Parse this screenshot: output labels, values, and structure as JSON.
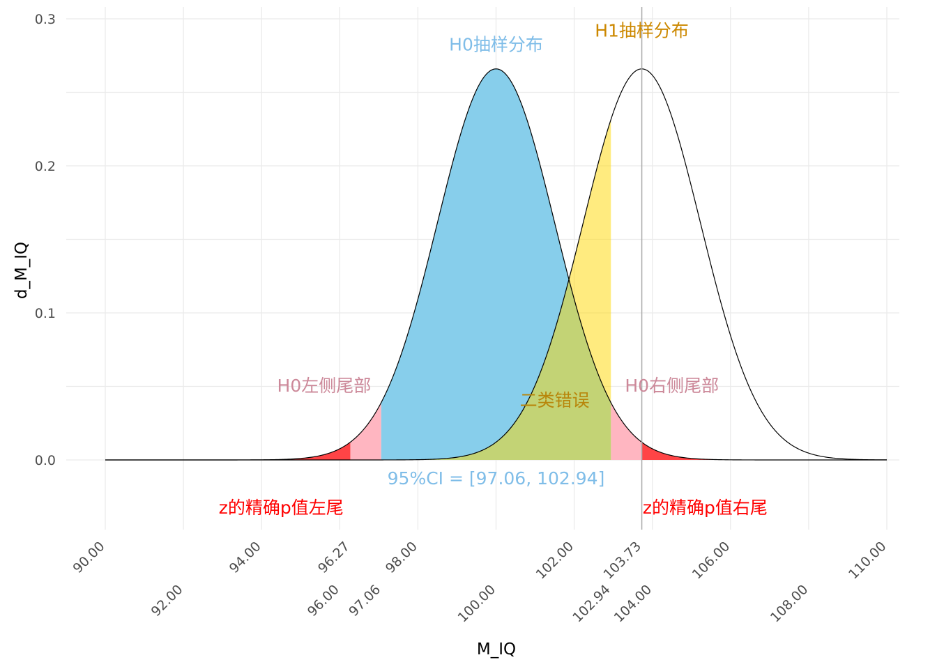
{
  "chart_data": {
    "type": "area",
    "xlabel": "M_IQ",
    "ylabel": "d_M_IQ",
    "xlim": [
      90,
      110
    ],
    "ylim": [
      0,
      0.3
    ],
    "y_ticks": [
      0.0,
      0.1,
      0.2,
      0.3
    ],
    "y_tick_labels": [
      "0.0",
      "0.1",
      "0.2",
      "0.3"
    ],
    "x_ticks_row1": [
      90,
      94,
      96.27,
      98,
      102,
      103.73,
      106,
      110
    ],
    "x_tick_labels_row1": [
      "90.00",
      "94.00",
      "96.27",
      "98.00",
      "102.00",
      "103.73",
      "106.00",
      "110.00"
    ],
    "x_ticks_row2": [
      92,
      96,
      97.06,
      100,
      102.94,
      104,
      108
    ],
    "x_tick_labels_row2": [
      "92.00",
      "96.00",
      "97.06",
      "100.00",
      "102.94",
      "104.00",
      "108.00"
    ],
    "grid": true,
    "vline_x": 103.73,
    "series": [
      {
        "mean": 100,
        "sd": 1.5
      },
      {
        "mean": 103.73,
        "sd": 1.5
      }
    ],
    "regions": {
      "ci_lower": 97.06,
      "ci_upper": 102.94,
      "p_left": 96.27,
      "p_right": 103.73
    },
    "annotations": {
      "h0": "H0抽样分布",
      "h1": "H1抽样分布",
      "h0_left_tail": "H0左侧尾部",
      "h0_right_tail": "H0右侧尾部",
      "type2": "二类错误",
      "ci": "95%CI = [97.06, 102.94]",
      "p_left": "z的精确p值左尾",
      "p_right": "z的精确p值右尾"
    },
    "colors": {
      "h0_fill": "#87CEEB",
      "type2_fill": "#FFD700",
      "tail_fill": "#FFB6C1",
      "p_fill": "#FF3030",
      "h0_label": "#7fbde8",
      "h1_label": "#cc8800",
      "tail_label": "#cc8899",
      "type2_label": "#b8860b",
      "p_label": "#ff0000",
      "ci_label": "#7fbde8",
      "grid": "#ebebeb",
      "vline": "#aaaaaa"
    }
  }
}
